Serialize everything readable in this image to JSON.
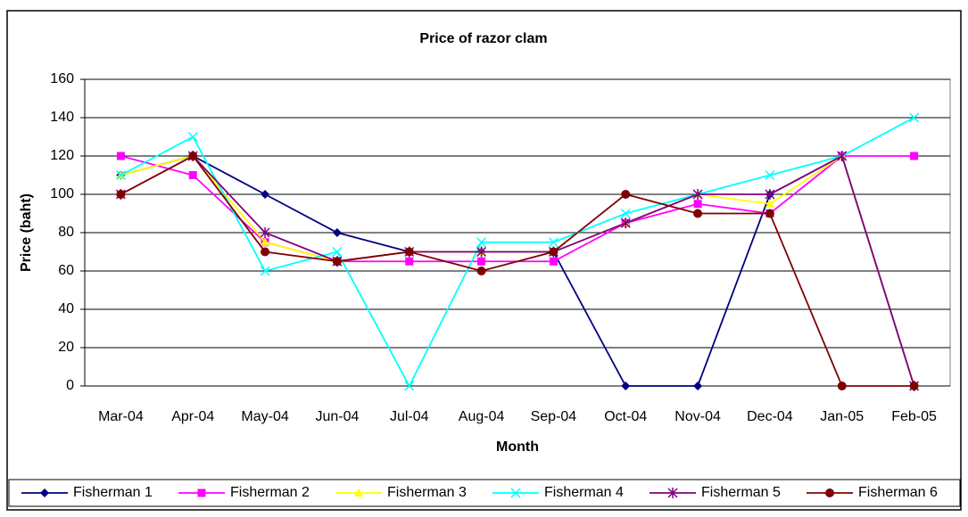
{
  "chart_data": {
    "type": "line",
    "title": "Price of razor clam",
    "x_label": "Month",
    "y_label": "Price (baht)",
    "categories": [
      "Mar-04",
      "Apr-04",
      "May-04",
      "Jun-04",
      "Jul-04",
      "Aug-04",
      "Sep-04",
      "Oct-04",
      "Nov-04",
      "Dec-04",
      "Jan-05",
      "Feb-05"
    ],
    "series": [
      {
        "name": "Fisherman 1",
        "color": "#000080",
        "marker": "diamond",
        "values": [
          110,
          120,
          100,
          80,
          70,
          70,
          70,
          0,
          0,
          100,
          120,
          0
        ]
      },
      {
        "name": "Fisherman 2",
        "color": "#ff00ff",
        "marker": "square",
        "values": [
          120,
          110,
          75,
          65,
          65,
          65,
          65,
          85,
          95,
          90,
          120,
          120
        ]
      },
      {
        "name": "Fisherman 3",
        "color": "#ffff00",
        "marker": "triangle",
        "values": [
          110,
          120,
          75,
          65,
          70,
          70,
          70,
          85,
          100,
          95,
          120,
          0
        ]
      },
      {
        "name": "Fisherman 4",
        "color": "#00ffff",
        "marker": "x",
        "values": [
          110,
          130,
          60,
          70,
          0,
          75,
          75,
          90,
          100,
          110,
          120,
          140
        ]
      },
      {
        "name": "Fisherman 5",
        "color": "#800080",
        "marker": "star",
        "values": [
          100,
          120,
          80,
          65,
          70,
          70,
          70,
          85,
          100,
          100,
          120,
          0
        ]
      },
      {
        "name": "Fisherman 6",
        "color": "#800000",
        "marker": "circle",
        "values": [
          100,
          120,
          70,
          65,
          70,
          60,
          70,
          100,
          90,
          90,
          0,
          0
        ]
      }
    ],
    "ylim": [
      0,
      160
    ],
    "yticks": [
      0,
      20,
      40,
      60,
      80,
      100,
      120,
      140,
      160
    ],
    "grid": true,
    "legend": "bottom"
  }
}
